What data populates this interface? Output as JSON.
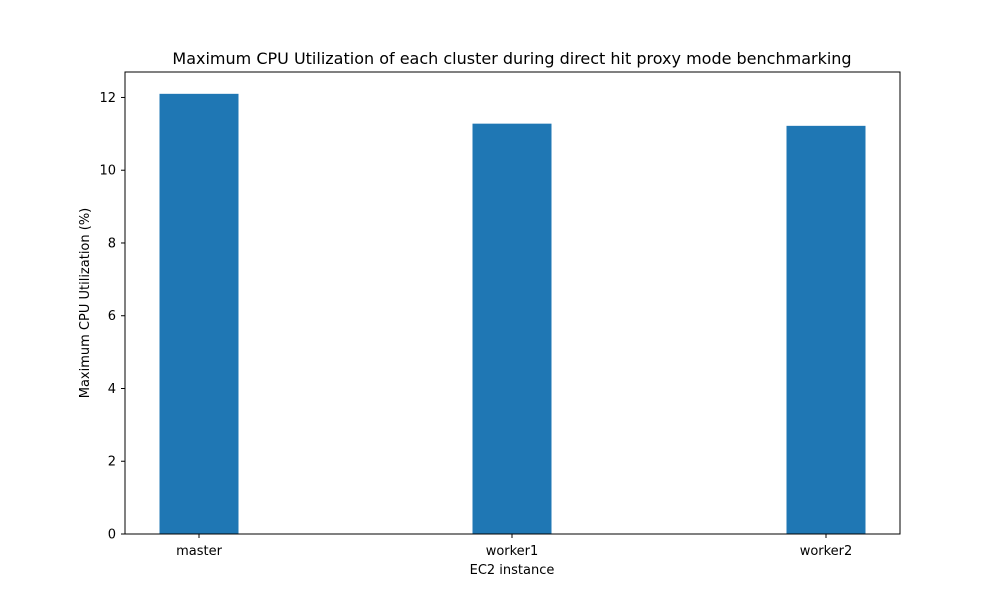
{
  "chart_data": {
    "type": "bar",
    "title": "Maximum CPU Utilization of each cluster during direct hit proxy mode benchmarking",
    "xlabel": "EC2 instance",
    "ylabel": "Maximum CPU Utilization (%)",
    "categories": [
      "master",
      "worker1",
      "worker2"
    ],
    "values": [
      12.1,
      11.28,
      11.22
    ],
    "ylim": [
      0,
      12.7
    ],
    "yticks": [
      0,
      2,
      4,
      6,
      8,
      10,
      12
    ],
    "grid": false,
    "bar_color": "#1f77b4"
  }
}
